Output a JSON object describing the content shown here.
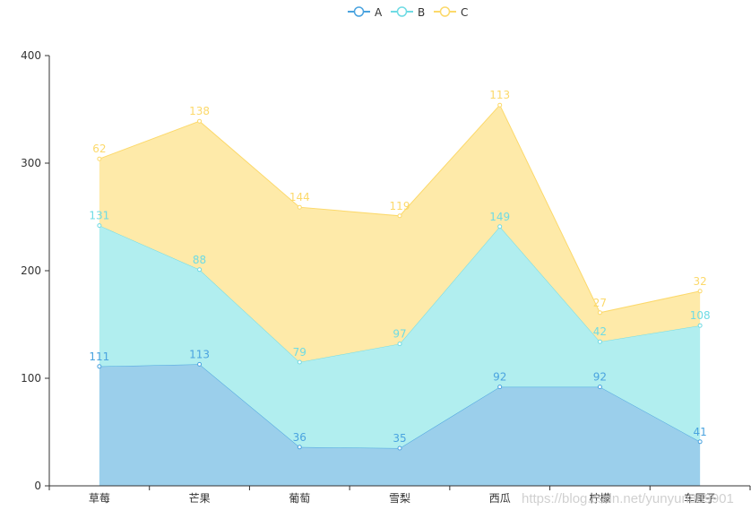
{
  "chart_data": {
    "type": "area",
    "stacked": true,
    "title": "",
    "xlabel": "",
    "ylabel": "",
    "categories": [
      "草莓",
      "芒果",
      "葡萄",
      "雪梨",
      "西瓜",
      "柠檬",
      "车厘子"
    ],
    "series": [
      {
        "name": "A",
        "color": "#4aa3df",
        "fill": "#9bcfeb",
        "values": [
          111,
          113,
          36,
          35,
          92,
          92,
          41
        ]
      },
      {
        "name": "B",
        "color": "#6fdbe4",
        "fill": "#b1eeef",
        "values": [
          131,
          88,
          79,
          97,
          149,
          42,
          108
        ]
      },
      {
        "name": "C",
        "color": "#fcd96b",
        "fill": "#feeaa9",
        "values": [
          62,
          138,
          144,
          119,
          113,
          27,
          32
        ]
      }
    ],
    "ylim": [
      0,
      400
    ],
    "yticks": [
      0,
      100,
      200,
      300,
      400
    ],
    "grid": false,
    "legend_position": "top-center",
    "data_labels": true
  },
  "legend": {
    "items": [
      {
        "label": "A",
        "color": "#4aa3df"
      },
      {
        "label": "B",
        "color": "#6fdbe4"
      },
      {
        "label": "C",
        "color": "#fcd96b"
      }
    ]
  },
  "watermark": "https://blog.csdn.net/yunyun889901"
}
